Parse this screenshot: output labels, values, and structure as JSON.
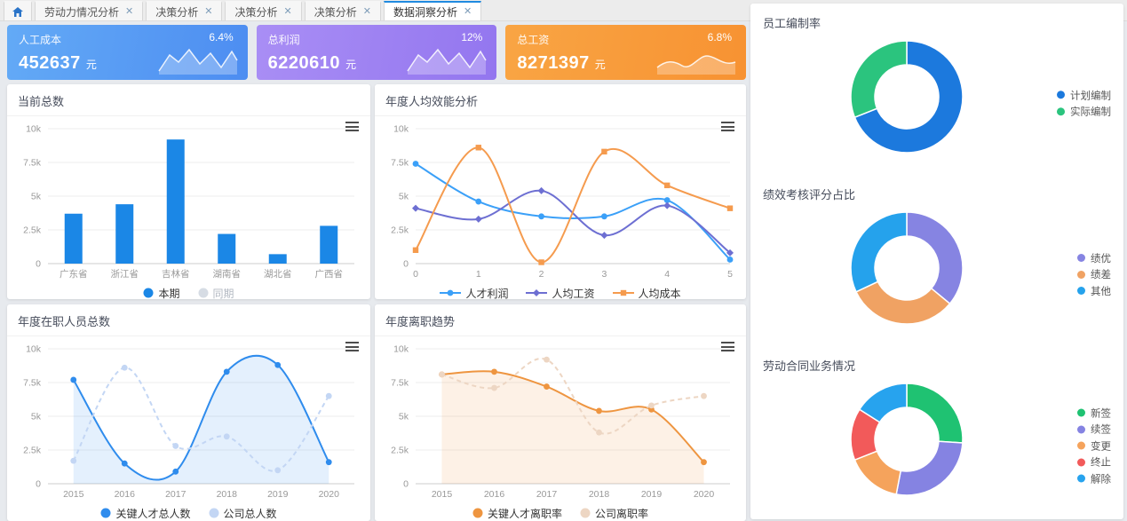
{
  "window": {
    "desktop_label": "自定义桌面"
  },
  "tabs": [
    {
      "label": "劳动力情况分析",
      "active": false
    },
    {
      "label": "决策分析",
      "active": false
    },
    {
      "label": "决策分析",
      "active": false
    },
    {
      "label": "决策分析",
      "active": false
    },
    {
      "label": "数据洞察分析",
      "active": true
    }
  ],
  "kpis": [
    {
      "title": "人工成本",
      "value": "452637",
      "unit": "元",
      "delta": "6.4%",
      "gradient": [
        "#63aaf6",
        "#4d8df1"
      ],
      "spark": "jagged"
    },
    {
      "title": "总利润",
      "value": "6220610",
      "unit": "元",
      "delta": "12%",
      "gradient": [
        "#a98ef5",
        "#9376ef"
      ],
      "spark": "jagged"
    },
    {
      "title": "总工资",
      "value": "8271397",
      "unit": "元",
      "delta": "6.8%",
      "gradient": [
        "#f9a544",
        "#f79232"
      ],
      "spark": "smooth"
    }
  ],
  "chart_data": [
    {
      "id": "current-total",
      "type": "bar",
      "title": "当前总数",
      "categories": [
        "广东省",
        "浙江省",
        "吉林省",
        "湖南省",
        "湖北省",
        "广西省"
      ],
      "series": [
        {
          "name": "本期",
          "values": [
            3700,
            4400,
            9200,
            2200,
            700,
            2800
          ],
          "color": "#1b87e6",
          "active": true
        },
        {
          "name": "同期",
          "values": null,
          "color": "#d6dce4",
          "active": false
        }
      ],
      "ylim": [
        0,
        10000
      ],
      "yticks": [
        "0",
        "2.5k",
        "5k",
        "7.5k",
        "10k"
      ],
      "legend_style": "dot",
      "legend_position": "bottom",
      "grid": true
    },
    {
      "id": "efficiency",
      "type": "line",
      "title": "年度人均效能分析",
      "categories": [
        "0",
        "1",
        "2",
        "3",
        "4",
        "5"
      ],
      "x_edge": true,
      "series": [
        {
          "name": "人才利润",
          "values": [
            7400,
            4600,
            3500,
            3500,
            4700,
            300
          ],
          "color": "#3ba0f8",
          "marker": "circle"
        },
        {
          "name": "人均工资",
          "values": [
            4100,
            3300,
            5400,
            2100,
            4300,
            800
          ],
          "color": "#6d6fd2",
          "marker": "diamond"
        },
        {
          "name": "人均成本",
          "values": [
            1000,
            8600,
            100,
            8300,
            5800,
            4100
          ],
          "color": "#f59b4e",
          "marker": "square"
        }
      ],
      "ylim": [
        0,
        10000
      ],
      "yticks": [
        "0",
        "2.5k",
        "5k",
        "7.5k",
        "10k"
      ],
      "legend_style": "line",
      "legend_position": "bottom",
      "grid": true
    },
    {
      "id": "headcount",
      "type": "line",
      "title": "年度在职人员总数",
      "categories": [
        "2015",
        "2016",
        "2017",
        "2018",
        "2019",
        "2020"
      ],
      "x_edge": false,
      "series": [
        {
          "name": "关键人才总人数",
          "values": [
            7700,
            1500,
            900,
            8300,
            8800,
            1600
          ],
          "color": "#2f8ced",
          "marker": "circle",
          "area": true
        },
        {
          "name": "公司总人数",
          "values": [
            1700,
            8600,
            2800,
            3500,
            1000,
            6500
          ],
          "color": "#c3d6f4",
          "marker": "circle",
          "dashed": true
        }
      ],
      "ylim": [
        0,
        10000
      ],
      "yticks": [
        "0",
        "2.5k",
        "5k",
        "7.5k",
        "10k"
      ],
      "legend_style": "dot",
      "legend_position": "bottom",
      "grid": true
    },
    {
      "id": "attrition",
      "type": "line",
      "title": "年度离职趋势",
      "categories": [
        "2015",
        "2016",
        "2017",
        "2018",
        "2019",
        "2020"
      ],
      "x_edge": false,
      "series": [
        {
          "name": "关键人才离职率",
          "values": [
            8100,
            8300,
            7200,
            5400,
            5500,
            1600
          ],
          "color": "#ee9540",
          "marker": "circle",
          "area": true
        },
        {
          "name": "公司离职率",
          "values": [
            8100,
            7100,
            9200,
            3800,
            5800,
            6500
          ],
          "color": "#edd6c3",
          "marker": "circle",
          "dashed": true
        }
      ],
      "ylim": [
        0,
        10000
      ],
      "yticks": [
        "0",
        "2.5k",
        "5k",
        "7.5k",
        "10k"
      ],
      "legend_style": "dot",
      "legend_position": "bottom",
      "grid": true
    },
    {
      "id": "staffing-rate",
      "type": "pie",
      "title": "员工编制率",
      "slices": [
        {
          "name": "计划编制",
          "value": 69,
          "color": "#1c79dd"
        },
        {
          "name": "实际编制",
          "value": 31,
          "color": "#2bc47e"
        }
      ],
      "legend_position": "right"
    },
    {
      "id": "performance-share",
      "type": "pie",
      "title": "绩效考核评分占比",
      "slices": [
        {
          "name": "绩优",
          "value": 36,
          "color": "#8684e2"
        },
        {
          "name": "绩差",
          "value": 32,
          "color": "#f0a263"
        },
        {
          "name": "其他",
          "value": 32,
          "color": "#25a2ec"
        }
      ],
      "legend_position": "right"
    },
    {
      "id": "contract-business",
      "type": "pie",
      "title": "劳动合同业务情况",
      "slices": [
        {
          "name": "新签",
          "value": 26,
          "color": "#1fc272"
        },
        {
          "name": "续签",
          "value": 27,
          "color": "#8583e2"
        },
        {
          "name": "变更",
          "value": 16,
          "color": "#f5a35c"
        },
        {
          "name": "终止",
          "value": 15,
          "color": "#f25a5a"
        },
        {
          "name": "解除",
          "value": 16,
          "color": "#27a3ee"
        }
      ],
      "legend_position": "right"
    }
  ]
}
